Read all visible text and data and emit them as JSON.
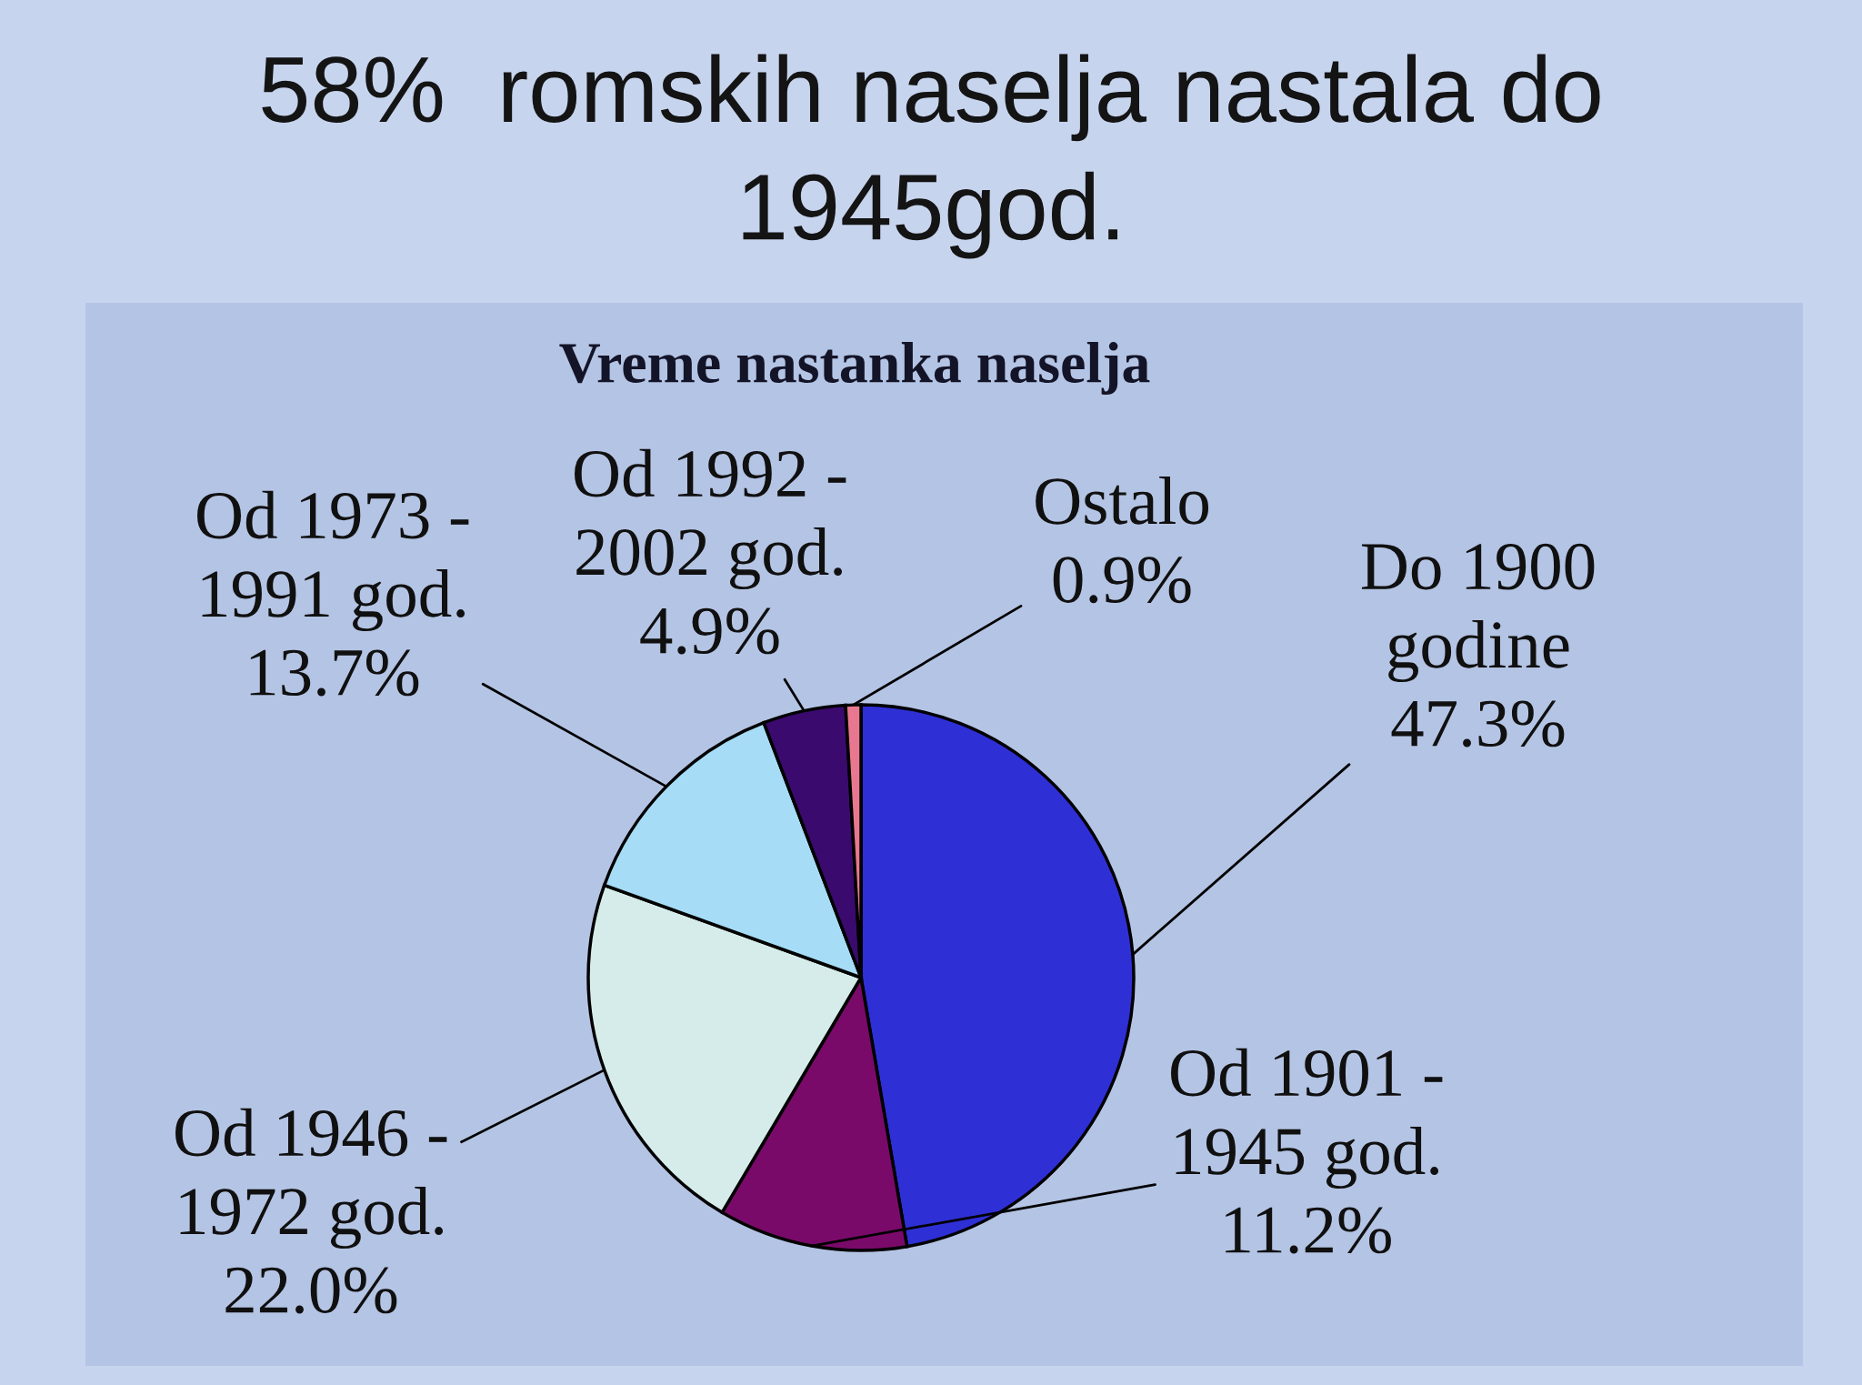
{
  "chart_data": {
    "type": "pie",
    "title": "58%  romskih naselja nastala do\n1945god.",
    "subtitle": "Vreme nastanka naselja",
    "categories": [
      "Do 1900\ngodine",
      "Od 1901 -\n1945 god.",
      "Od 1946 -\n1972 god.",
      "Od 1973 -\n1991 god.",
      "Od 1992 -\n2002 god.",
      "Ostalo"
    ],
    "values": [
      47.3,
      11.2,
      22.0,
      13.7,
      4.9,
      0.9
    ],
    "value_labels": [
      "47.3%",
      "11.2%",
      "22.0%",
      "13.7%",
      "4.9%",
      "0.9%"
    ],
    "colors": [
      "#2f2fd6",
      "#7a0a6a",
      "#d6ecea",
      "#a6dcf6",
      "#3a0a6e",
      "#e87890"
    ]
  }
}
